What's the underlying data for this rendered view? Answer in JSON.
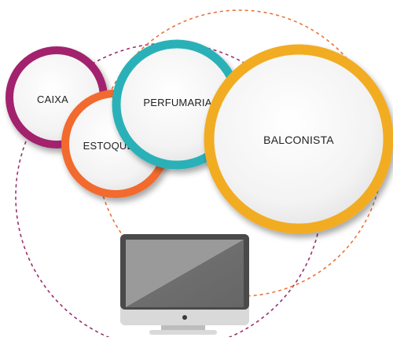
{
  "nodes": {
    "caixa": {
      "label": "CAIXA",
      "color": "#A3246E"
    },
    "estoque": {
      "label": "ESTOQUE",
      "color": "#F26A2E"
    },
    "perfumaria": {
      "label": "PERFUMARIA",
      "color": "#2BB1B8"
    },
    "balconista": {
      "label": "BALCONISTA",
      "color": "#F2AC24"
    }
  },
  "orbits": {
    "left_color": "#9C2E6E",
    "right_color": "#E8743B"
  },
  "device": {
    "icon": "monitor-icon",
    "frame_color": "#4A4A4A",
    "screen_color": "#8C8C8C",
    "bezel_color": "#D9D9D9",
    "stand_color": "#BDBDBD"
  }
}
